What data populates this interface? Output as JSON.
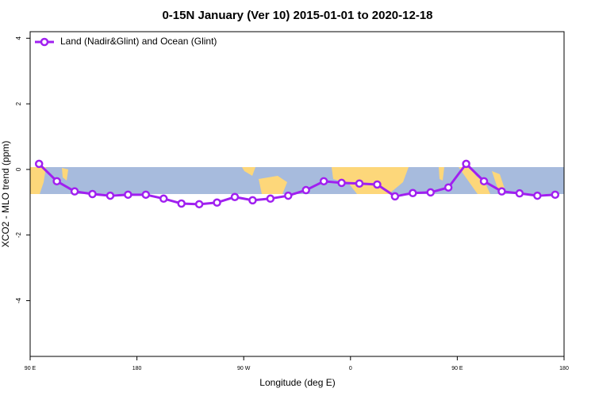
{
  "chart_data": {
    "type": "line",
    "title": "0-15N January (Ver 10)   2015-01-01 to 2020-12-18",
    "x_label": "Longitude (deg E)",
    "y_label": "XCO2 - MLO trend (ppm)",
    "x": [
      97.5,
      112.5,
      127.5,
      142.5,
      157.5,
      172.5,
      187.5,
      202.5,
      217.5,
      232.5,
      247.5,
      262.5,
      277.5,
      292.5,
      307.5,
      322.5,
      337.5,
      352.5,
      367.5,
      382.5,
      397.5,
      412.5,
      427.5,
      442.5,
      457.5,
      472.5,
      487.5,
      502.5,
      517.5,
      532.5
    ],
    "series": [
      {
        "name": "Land (Nadir&Glint) and Ocean (Glint)",
        "color": "#a020f0",
        "values": [
          0.17,
          -0.36,
          -0.67,
          -0.75,
          -0.8,
          -0.77,
          -0.77,
          -0.89,
          -1.04,
          -1.06,
          -1.01,
          -0.84,
          -0.94,
          -0.89,
          -0.8,
          -0.63,
          -0.36,
          -0.41,
          -0.43,
          -0.46,
          -0.82,
          -0.72,
          -0.7,
          -0.55,
          0.17,
          -0.36,
          -0.67,
          -0.73,
          -0.8,
          -0.77
        ]
      }
    ],
    "xlim": [
      90,
      540
    ],
    "xticks": [
      {
        "value": 90,
        "label": "90 E"
      },
      180,
      {
        "value": 270,
        "label": "90 W"
      },
      {
        "value": 360,
        "label": "0"
      },
      {
        "value": 450,
        "label": "90 E"
      },
      {
        "value": 540,
        "label": "180"
      }
    ],
    "ylim": [
      -5.7,
      4.2
    ],
    "yticks": [
      4,
      2,
      0,
      -2,
      -4
    ],
    "legend": "top-left"
  }
}
